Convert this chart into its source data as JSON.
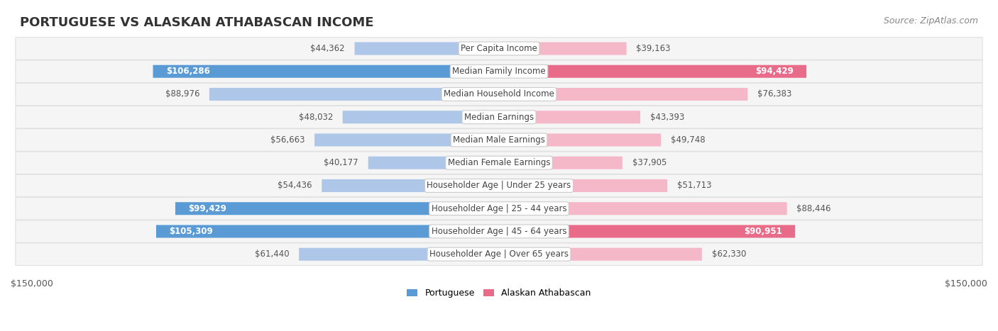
{
  "title": "PORTUGUESE VS ALASKAN ATHABASCAN INCOME",
  "source": "Source: ZipAtlas.com",
  "categories": [
    "Per Capita Income",
    "Median Family Income",
    "Median Household Income",
    "Median Earnings",
    "Median Male Earnings",
    "Median Female Earnings",
    "Householder Age | Under 25 years",
    "Householder Age | 25 - 44 years",
    "Householder Age | 45 - 64 years",
    "Householder Age | Over 65 years"
  ],
  "portuguese_values": [
    44362,
    106286,
    88976,
    48032,
    56663,
    40177,
    54436,
    99429,
    105309,
    61440
  ],
  "athabascan_values": [
    39163,
    94429,
    76383,
    43393,
    49748,
    37905,
    51713,
    88446,
    90951,
    62330
  ],
  "max_value": 150000,
  "portuguese_color_dark": "#5b9bd5",
  "portuguese_color_light": "#aec6e8",
  "athabascan_color_dark": "#e96b8a",
  "athabascan_color_light": "#f5b8c8",
  "bar_bg_color": "#f0f0f0",
  "row_bg_color": "#f5f5f5",
  "row_border_color": "#e0e0e0",
  "label_dark_threshold": 90000,
  "legend_portuguese": "Portuguese",
  "legend_athabascan": "Alaskan Athabascan",
  "xlabel_left": "$150,000",
  "xlabel_right": "$150,000",
  "title_fontsize": 13,
  "source_fontsize": 9,
  "label_fontsize": 8.5,
  "category_fontsize": 8.5,
  "bar_height": 0.55
}
